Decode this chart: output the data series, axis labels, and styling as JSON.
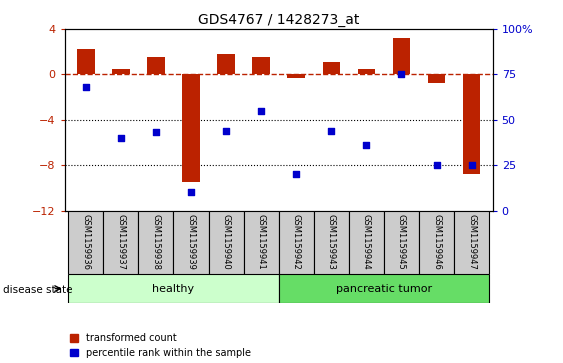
{
  "title": "GDS4767 / 1428273_at",
  "samples": [
    "GSM1159936",
    "GSM1159937",
    "GSM1159938",
    "GSM1159939",
    "GSM1159940",
    "GSM1159941",
    "GSM1159942",
    "GSM1159943",
    "GSM1159944",
    "GSM1159945",
    "GSM1159946",
    "GSM1159947"
  ],
  "transformed_count": [
    2.2,
    0.5,
    1.5,
    -9.5,
    1.8,
    1.5,
    -0.3,
    1.1,
    0.5,
    3.2,
    -0.8,
    -8.8
  ],
  "percentile_rank": [
    68,
    40,
    43,
    10,
    44,
    55,
    20,
    44,
    36,
    75,
    25,
    25
  ],
  "healthy_color": "#ccffcc",
  "tumor_color": "#66dd66",
  "bar_color": "#bb2200",
  "dot_color": "#0000cc",
  "ylim_left": [
    -12,
    4
  ],
  "ylim_right": [
    0,
    100
  ],
  "yticks_left": [
    4,
    0,
    -4,
    -8,
    -12
  ],
  "yticks_right": [
    100,
    75,
    50,
    25,
    0
  ],
  "dotted_lines": [
    -4,
    -8
  ],
  "bar_width": 0.5,
  "label_gray": "#cccccc"
}
